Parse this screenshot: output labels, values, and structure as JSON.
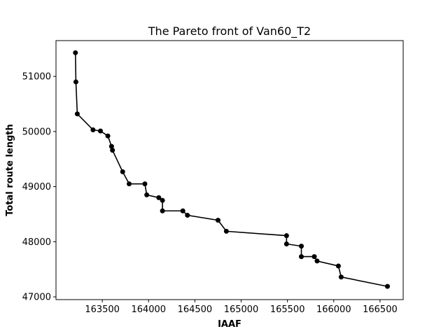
{
  "chart_data": {
    "type": "line",
    "title": "The Pareto front of Van60_T2",
    "xlabel": "IAAF",
    "ylabel": "Total route length",
    "xlim": [
      163000,
      166750
    ],
    "ylim": [
      46950,
      51650
    ],
    "xticks": [
      163500,
      164000,
      164500,
      165000,
      165500,
      166000,
      166500
    ],
    "yticks": [
      47000,
      48000,
      49000,
      50000,
      51000
    ],
    "grid": false,
    "marker": "circle",
    "line_color": "#000000",
    "series": [
      {
        "x": [
          163210,
          163215,
          163230,
          163400,
          163480,
          163560,
          163600,
          163610,
          163720,
          163790,
          163960,
          163980,
          164110,
          164150,
          164150,
          164370,
          164420,
          164750,
          164840,
          165490,
          165490,
          165650,
          165650,
          165790,
          165820,
          166050,
          166080,
          166580
        ],
        "y": [
          51430,
          50900,
          50320,
          50030,
          50010,
          49920,
          49730,
          49660,
          49270,
          49050,
          49050,
          48850,
          48800,
          48750,
          48560,
          48560,
          48480,
          48390,
          48190,
          48110,
          47960,
          47920,
          47730,
          47730,
          47650,
          47560,
          47360,
          47190
        ]
      }
    ]
  }
}
